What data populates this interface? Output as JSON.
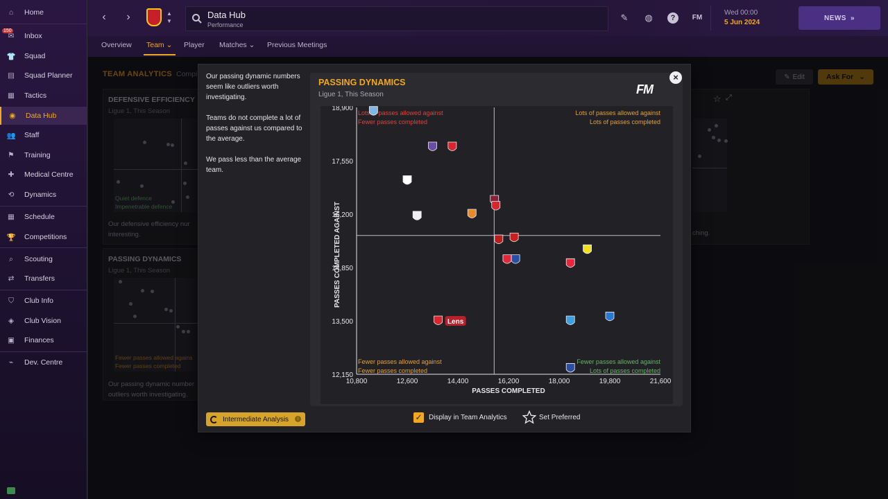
{
  "sidebar": {
    "inbox_badge": "150",
    "items": [
      {
        "label": "Home",
        "icon": "home-icon",
        "glyph": "⌂"
      },
      {
        "label": "Inbox",
        "icon": "inbox-icon",
        "glyph": "✉"
      },
      {
        "label": "Squad",
        "icon": "squad-icon",
        "glyph": "👕"
      },
      {
        "label": "Squad Planner",
        "icon": "squad-planner-icon",
        "glyph": "▤"
      },
      {
        "label": "Tactics",
        "icon": "tactics-icon",
        "glyph": "▦"
      },
      {
        "label": "Data Hub",
        "icon": "data-hub-icon",
        "glyph": "◉"
      },
      {
        "label": "Staff",
        "icon": "staff-icon",
        "glyph": "👥"
      },
      {
        "label": "Training",
        "icon": "training-icon",
        "glyph": "⚑"
      },
      {
        "label": "Medical Centre",
        "icon": "medical-icon",
        "glyph": "✚"
      },
      {
        "label": "Dynamics",
        "icon": "dynamics-icon",
        "glyph": "⟲"
      },
      {
        "label": "Schedule",
        "icon": "schedule-icon",
        "glyph": "▦"
      },
      {
        "label": "Competitions",
        "icon": "trophy-icon",
        "glyph": "🏆"
      },
      {
        "label": "Scouting",
        "icon": "scouting-icon",
        "glyph": "⌕"
      },
      {
        "label": "Transfers",
        "icon": "transfers-icon",
        "glyph": "⇄"
      },
      {
        "label": "Club Info",
        "icon": "shield-icon",
        "glyph": "⛉"
      },
      {
        "label": "Club Vision",
        "icon": "vision-icon",
        "glyph": "◈"
      },
      {
        "label": "Finances",
        "icon": "finances-icon",
        "glyph": "▣"
      },
      {
        "label": "Dev. Centre",
        "icon": "dev-centre-icon",
        "glyph": "⌁"
      }
    ]
  },
  "topbar": {
    "title": "Data Hub",
    "subtitle": "Performance",
    "date_day": "Wed 00:00",
    "date_date": "5 Jun 2024",
    "news_label": "NEWS",
    "fm_label": "FM"
  },
  "subtabs": {
    "overview": "Overview",
    "team": "Team",
    "player": "Player",
    "matches": "Matches",
    "previous": "Previous Meetings"
  },
  "background": {
    "section_title": "TEAM ANALYTICS",
    "section_sub": "Compi",
    "edit_label": "Edit",
    "ask_for_label": "Ask For",
    "card1": {
      "title": "DEFENSIVE EFFICIENCY",
      "subtitle": "Ligue 1, This Season",
      "quad1": "Quiet defence",
      "quad2": "Impenetrable defence",
      "text": "Our defensive efficiency nur interesting."
    },
    "card2": {
      "title": "PASSING DYNAMICS",
      "subtitle": "Ligue 1, This Season",
      "quad1": "Fewer passes allowed agains",
      "quad2": "Fewer passes completed",
      "text": "Our passing dynamic number outliers worth investigating."
    },
    "card3_text": "ching."
  },
  "modal": {
    "insight": [
      "Our passing dynamic numbers seem like outliers worth investigating.",
      "Teams do not complete a lot of passes against us compared to the average.",
      "We pass less than the average team."
    ],
    "intermediate_label": "Intermediate Analysis",
    "display_label": "Display in Team Analytics",
    "preferred_label": "Set Preferred",
    "fm_logo": "FM"
  },
  "chart_data": {
    "type": "scatter",
    "title": "PASSING DYNAMICS",
    "subtitle": "Ligue 1, This Season",
    "xlabel": "PASSES COMPLETED",
    "ylabel": "PASSES COMPLETED AGAINST",
    "xlim": [
      10800,
      21600
    ],
    "ylim": [
      12150,
      18900
    ],
    "x_ticks": [
      "10,800",
      "12,600",
      "14,400",
      "16,200",
      "18,000",
      "19,800",
      "21,600"
    ],
    "y_ticks": [
      "12,150",
      "13,500",
      "14,850",
      "16,200",
      "17,550",
      "18,900"
    ],
    "average_x": 15690,
    "average_y": 15660,
    "quadrant_labels": {
      "top_left": [
        "Lots of passes allowed against",
        "Fewer passes completed"
      ],
      "top_right": [
        "Lots of passes allowed against",
        "Lots of passes completed"
      ],
      "bottom_left": [
        "Fewer passes allowed against",
        "Fewer passes completed"
      ],
      "bottom_right": [
        "Fewer passes allowed against",
        "Lots of passes completed"
      ]
    },
    "highlight_label": "Lens",
    "points": [
      {
        "team": "Lens",
        "x": 13700,
        "y": 13500,
        "color": "#d8262e",
        "highlight": true
      },
      {
        "team": "Le Havre",
        "x": 11400,
        "y": 18800,
        "color": "#7fb6e8"
      },
      {
        "team": "Toulouse",
        "x": 13500,
        "y": 17900,
        "color": "#6a4ea1"
      },
      {
        "team": "Brest",
        "x": 14200,
        "y": 17900,
        "color": "#d8262e"
      },
      {
        "team": "Clermont",
        "x": 12600,
        "y": 17050,
        "color": "#ffffff"
      },
      {
        "team": "Montpellier",
        "x": 12950,
        "y": 16150,
        "color": "#f0f0f4"
      },
      {
        "team": "Lorient",
        "x": 14900,
        "y": 16200,
        "color": "#e88a2a"
      },
      {
        "team": "Metz",
        "x": 15700,
        "y": 16550,
        "color": "#8a1f3a"
      },
      {
        "team": "Reims",
        "x": 15750,
        "y": 16400,
        "color": "#d8262e"
      },
      {
        "team": "Lyon",
        "x": 16450,
        "y": 15050,
        "color": "#2a4ea1"
      },
      {
        "team": "Nice",
        "x": 15850,
        "y": 15550,
        "color": "#b82020"
      },
      {
        "team": "Rennes",
        "x": 16400,
        "y": 15600,
        "color": "#c82020"
      },
      {
        "team": "Monaco",
        "x": 16150,
        "y": 15050,
        "color": "#e0283a"
      },
      {
        "team": "Nantes",
        "x": 19000,
        "y": 15300,
        "color": "#f2e01e"
      },
      {
        "team": "Lille",
        "x": 18400,
        "y": 14950,
        "color": "#e8283a"
      },
      {
        "team": "Marseille",
        "x": 18400,
        "y": 13500,
        "color": "#3aa0e0"
      },
      {
        "team": "Strasbourg",
        "x": 19800,
        "y": 13600,
        "color": "#2a78d0"
      },
      {
        "team": "PSG",
        "x": 18400,
        "y": 12300,
        "color": "#2a4ea1"
      }
    ]
  }
}
